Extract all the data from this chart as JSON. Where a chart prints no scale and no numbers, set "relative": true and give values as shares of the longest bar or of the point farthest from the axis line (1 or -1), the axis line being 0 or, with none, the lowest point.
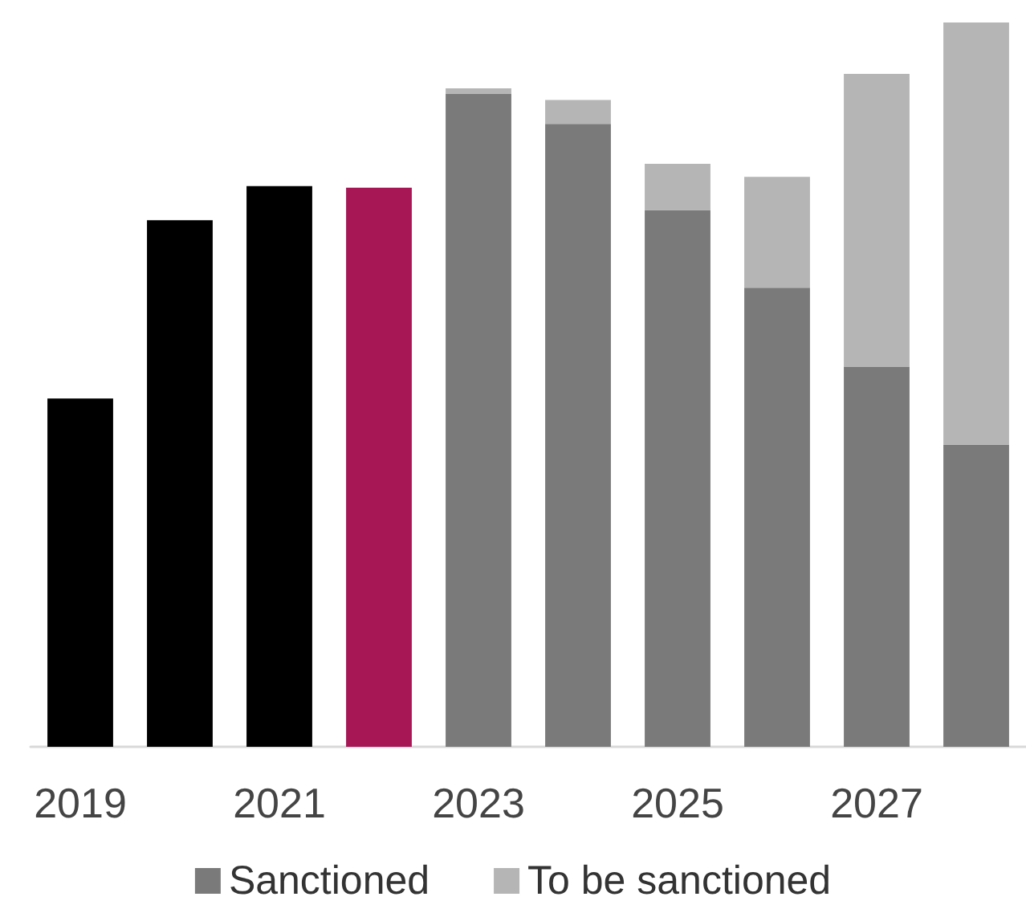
{
  "chart_data": {
    "type": "bar",
    "relative": true,
    "stacked": true,
    "categories": [
      "2019",
      null,
      "2021",
      null,
      "2023",
      null,
      "2025",
      null,
      "2027",
      null
    ],
    "series": [
      {
        "name": "Sanctioned",
        "color": "#7a7a7a",
        "colors": [
          "#000000",
          "#000000",
          "#000000",
          "#a71756",
          "#7a7a7a",
          "#7a7a7a",
          "#7a7a7a",
          "#7a7a7a",
          "#7a7a7a",
          "#7a7a7a"
        ],
        "values": [
          0.481,
          0.727,
          0.774,
          0.772,
          0.902,
          0.86,
          0.741,
          0.634,
          0.525,
          0.417
        ]
      },
      {
        "name": "To be sanctioned",
        "color": "#b5b5b5",
        "values": [
          null,
          null,
          null,
          null,
          0.007,
          0.033,
          0.064,
          0.153,
          0.404,
          0.583
        ]
      }
    ],
    "legend": "bottom",
    "grid": false
  }
}
